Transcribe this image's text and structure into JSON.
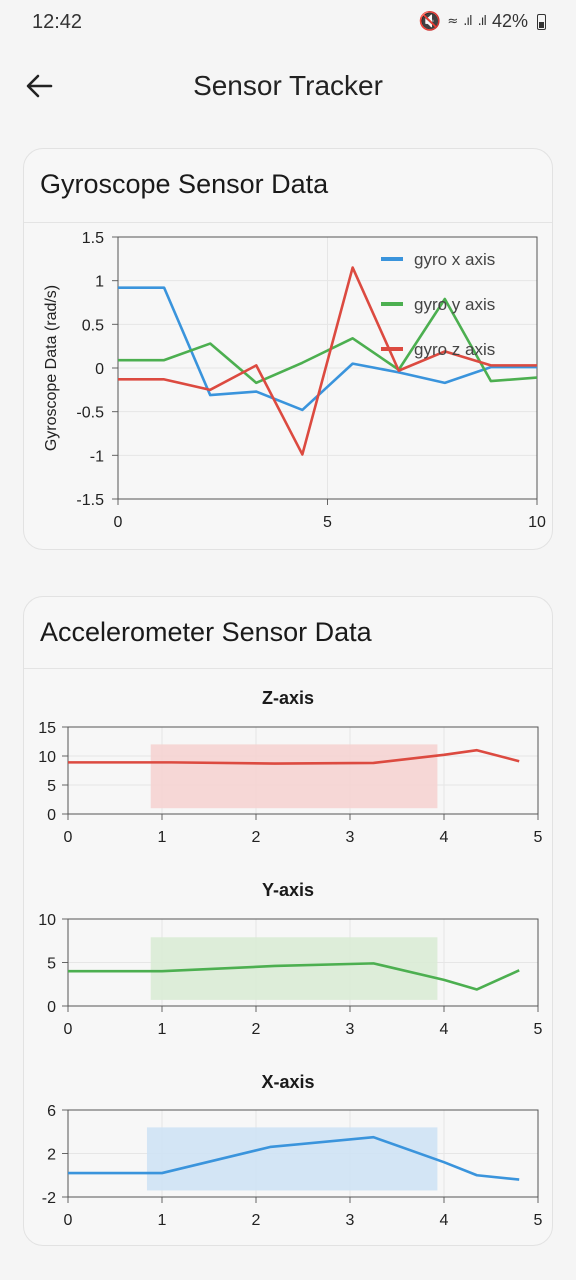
{
  "status": {
    "time": "12:42",
    "battery": "42%"
  },
  "app_bar": {
    "title": "Sensor Tracker",
    "back_icon": "arrow-left-icon"
  },
  "gyro_card": {
    "title": "Gyroscope Sensor Data"
  },
  "accel_card": {
    "title": "Accelerometer Sensor Data"
  },
  "colors": {
    "x": "#3a94dc",
    "y": "#4caf50",
    "z": "#dc4a40"
  },
  "chart_data": [
    {
      "type": "line",
      "title": "",
      "xlabel": "",
      "ylabel": "Gyroscope Data (rad/s)",
      "xlim": [
        0,
        10
      ],
      "ylim": [
        -1.5,
        1.5
      ],
      "x_ticks": [
        "0",
        "5",
        "10"
      ],
      "y_ticks": [
        "1.5",
        "1",
        "0.5",
        "0",
        "-0.5",
        "-1",
        "-1.5"
      ],
      "legend_position": "top-right",
      "series": [
        {
          "name": "gyro x axis",
          "color": "#3a94dc",
          "x": [
            0,
            1.1,
            2.2,
            3.3,
            4.4,
            5.6,
            6.7,
            7.8,
            8.9,
            10
          ],
          "y": [
            0.92,
            0.92,
            -0.31,
            -0.27,
            -0.48,
            0.05,
            -0.05,
            -0.17,
            0.01,
            0.01
          ]
        },
        {
          "name": "gyro y axis",
          "color": "#4caf50",
          "x": [
            0,
            1.1,
            2.2,
            3.3,
            4.4,
            5.6,
            6.7,
            7.8,
            8.9,
            10
          ],
          "y": [
            0.09,
            0.09,
            0.28,
            -0.17,
            0.06,
            0.34,
            -0.02,
            0.79,
            -0.15,
            -0.11
          ]
        },
        {
          "name": "gyro z axis",
          "color": "#dc4a40",
          "x": [
            0,
            1.1,
            2.2,
            3.3,
            4.4,
            5.6,
            6.7,
            7.8,
            8.9,
            10
          ],
          "y": [
            -0.13,
            -0.13,
            -0.25,
            0.03,
            -0.99,
            1.15,
            -0.03,
            0.19,
            0.03,
            0.03
          ]
        }
      ]
    },
    {
      "type": "line",
      "title": "Z-axis",
      "xlim": [
        0,
        5
      ],
      "ylim": [
        0,
        15
      ],
      "x_ticks": [
        "0",
        "1",
        "2",
        "3",
        "4",
        "5"
      ],
      "y_ticks": [
        "15",
        "10",
        "5",
        "0"
      ],
      "band": {
        "x": [
          0.88,
          3.93
        ],
        "y": [
          1,
          12
        ]
      },
      "series": [
        {
          "color": "#dc4a40",
          "band_color": "#f6d1d0",
          "x": [
            0,
            1.1,
            2.2,
            3.25,
            4.0,
            4.35,
            4.8
          ],
          "y": [
            8.9,
            8.9,
            8.7,
            8.8,
            10.2,
            11,
            9.1
          ]
        }
      ]
    },
    {
      "type": "line",
      "title": "Y-axis",
      "xlim": [
        0,
        5
      ],
      "ylim": [
        0,
        10
      ],
      "x_ticks": [
        "0",
        "1",
        "2",
        "3",
        "4",
        "5"
      ],
      "y_ticks": [
        "10",
        "5",
        "0"
      ],
      "band": {
        "x": [
          0.88,
          3.93
        ],
        "y": [
          0.7,
          7.9
        ]
      },
      "series": [
        {
          "color": "#4caf50",
          "band_color": "#d8ebd3",
          "x": [
            0,
            1.0,
            2.2,
            3.25,
            4.0,
            4.35,
            4.8
          ],
          "y": [
            4.0,
            4.0,
            4.6,
            4.9,
            3.0,
            1.9,
            4.1
          ]
        }
      ]
    },
    {
      "type": "line",
      "title": "X-axis",
      "xlim": [
        0,
        5
      ],
      "ylim": [
        -2,
        6
      ],
      "x_ticks": [
        "0",
        "1",
        "2",
        "3",
        "4",
        "5"
      ],
      "y_ticks": [
        "6",
        "2",
        "-2"
      ],
      "band": {
        "x": [
          0.84,
          3.93
        ],
        "y": [
          -1.4,
          4.4
        ]
      },
      "series": [
        {
          "color": "#3a94dc",
          "band_color": "#cde2f5",
          "x": [
            0,
            1.0,
            2.15,
            3.25,
            4.0,
            4.35,
            4.8
          ],
          "y": [
            0.2,
            0.2,
            2.6,
            3.5,
            1.2,
            0.0,
            -0.4
          ]
        }
      ]
    }
  ]
}
